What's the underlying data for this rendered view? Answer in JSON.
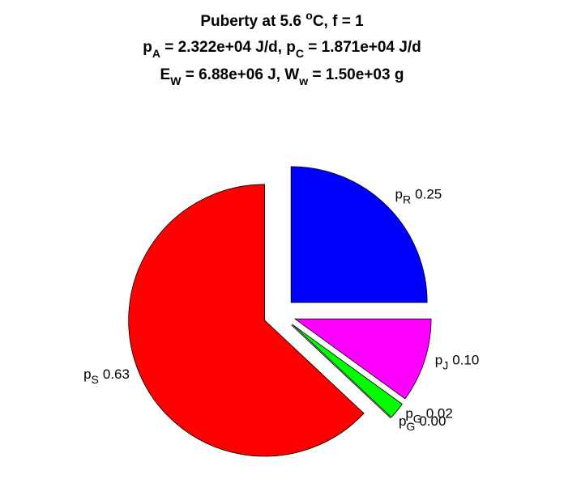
{
  "chart_data": {
    "type": "pie",
    "title": [
      [
        {
          "text": "Puberty at 5.6 "
        },
        {
          "text": "o",
          "shift": "super"
        },
        {
          "text": "C, f = 1"
        }
      ],
      [
        {
          "text": "p"
        },
        {
          "text": "A",
          "shift": "sub"
        },
        {
          "text": " = 2.322e+04 J/d,  p"
        },
        {
          "text": "C",
          "shift": "sub"
        },
        {
          "text": " = 1.871e+04 J/d"
        }
      ],
      [
        {
          "text": "E"
        },
        {
          "text": "W",
          "shift": "sub"
        },
        {
          "text": " = 6.88e+06 J, W"
        },
        {
          "text": "w",
          "shift": "sub"
        },
        {
          "text": " = 1.50e+03 g"
        }
      ]
    ],
    "slices": [
      {
        "name": "p",
        "sub": "R",
        "value": 0.25,
        "label": "0.25",
        "color": "#0000ff"
      },
      {
        "name": "p",
        "sub": "J",
        "value": 0.1,
        "label": "0.10",
        "color": "#ff00ff"
      },
      {
        "name": "p",
        "sub": "G",
        "value": 0.02,
        "label": "0.02",
        "color": "#00ff00"
      },
      {
        "name": "p",
        "sub": "G",
        "value": 0,
        "label": "0.00",
        "color": "#00ff00"
      },
      {
        "name": "p",
        "sub": "S",
        "value": 0.63,
        "label": "0.63",
        "color": "#ff0000"
      }
    ],
    "explode": true
  }
}
